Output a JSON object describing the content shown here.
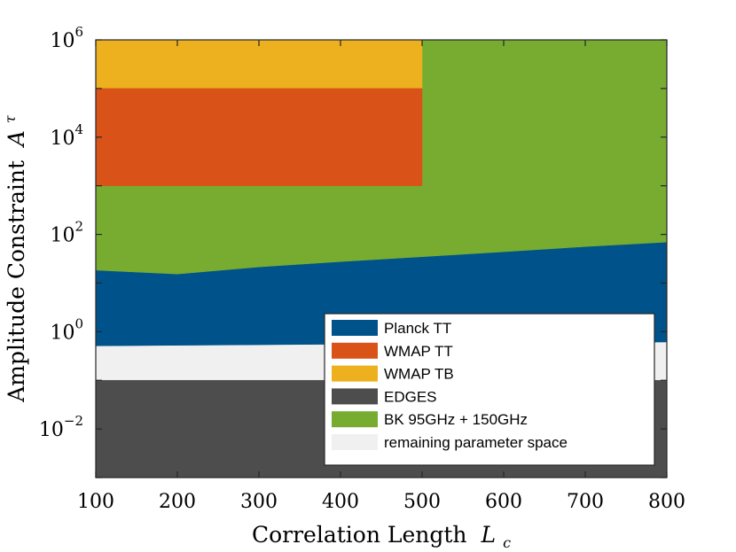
{
  "chart_data": {
    "type": "area",
    "xlabel": "Correlation Length",
    "xlabel_var": "L",
    "xlabel_sub": "c",
    "ylabel": "Amplitude Constraint",
    "ylabel_var": "A",
    "ylabel_sup": "τ",
    "xlim": [
      100,
      800
    ],
    "ylim": [
      0.001,
      1000000
    ],
    "yscale": "log",
    "x_ticks": [
      100,
      200,
      300,
      400,
      500,
      600,
      700,
      800
    ],
    "x_tick_labels": [
      "100",
      "200",
      "300",
      "400",
      "500",
      "600",
      "700",
      "800"
    ],
    "y_ticks": [
      {
        "value": 0.01,
        "base": "10",
        "exp": "−2"
      },
      {
        "value": 1,
        "base": "10",
        "exp": "0"
      },
      {
        "value": 100,
        "base": "10",
        "exp": "2"
      },
      {
        "value": 10000,
        "base": "10",
        "exp": "4"
      },
      {
        "value": 1000000,
        "base": "10",
        "exp": "6"
      }
    ],
    "legend_position": "bottom-right",
    "series": [
      {
        "name": "BK 95GHz + 150GHz",
        "color": "#77ac30",
        "x": [
          100,
          800
        ],
        "lower": [
          0.001,
          0.001
        ],
        "upper": [
          1000000,
          1000000
        ]
      },
      {
        "name": "WMAP TB",
        "color": "#edb120",
        "x": [
          100,
          500
        ],
        "lower": [
          100000,
          100000
        ],
        "upper": [
          1000000,
          1000000
        ]
      },
      {
        "name": "WMAP TT",
        "color": "#d95319",
        "x": [
          100,
          500
        ],
        "lower": [
          1000,
          1000
        ],
        "upper": [
          100000,
          100000
        ]
      },
      {
        "name": "Planck TT",
        "color": "#00538a",
        "x": [
          100,
          200,
          300,
          400,
          500,
          600,
          700,
          800
        ],
        "lower": [
          0.001,
          0.001,
          0.001,
          0.001,
          0.001,
          0.001,
          0.001,
          0.001
        ],
        "upper": [
          18,
          15,
          21,
          27,
          34,
          43,
          55,
          68
        ]
      },
      {
        "name": "remaining parameter space",
        "color": "#f0f0f0",
        "x": [
          100,
          800
        ],
        "lower": [
          0.001,
          0.001
        ],
        "upper": [
          0.5,
          0.6
        ]
      },
      {
        "name": "EDGES",
        "color": "#4d4d4d",
        "x": [
          100,
          800
        ],
        "lower": [
          0.001,
          0.001
        ],
        "upper": [
          0.1,
          0.1
        ]
      }
    ],
    "legend_order": [
      "Planck TT",
      "WMAP TT",
      "WMAP TB",
      "EDGES",
      "BK 95GHz + 150GHz",
      "remaining parameter space"
    ]
  }
}
